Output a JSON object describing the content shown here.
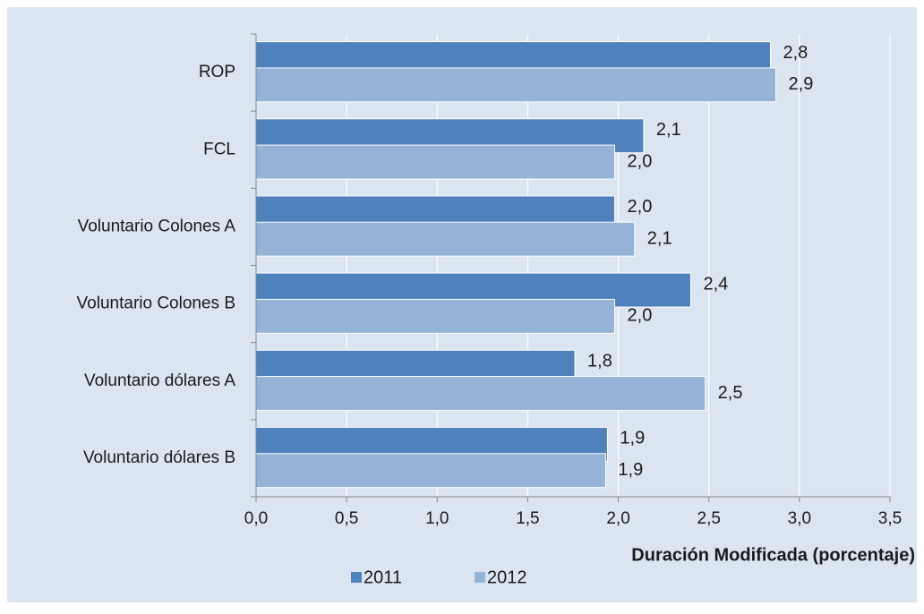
{
  "chart_data": {
    "type": "bar",
    "orientation": "horizontal",
    "x_label": "Duración Modificada (porcentaje)",
    "categories": [
      "ROP",
      "FCL",
      "Voluntario Colones A",
      "Voluntario Colones B",
      "Voluntario dólares A",
      "Voluntario dólares B"
    ],
    "series": [
      {
        "name": "2011",
        "color": "#4f81bd",
        "values": [
          2.84,
          2.14,
          1.98,
          2.4,
          1.76,
          1.94
        ],
        "value_labels": [
          "2,8",
          "2,1",
          "2,0",
          "2,4",
          "1,8",
          "1,9"
        ]
      },
      {
        "name": "2012",
        "color": "#95b3d7",
        "values": [
          2.87,
          1.98,
          2.09,
          1.98,
          2.48,
          1.93
        ],
        "value_labels": [
          "2,9",
          "2,0",
          "2,1",
          "2,0",
          "2,5",
          "1,9"
        ]
      }
    ],
    "xlim": [
      0,
      3.5
    ],
    "xticks": [
      {
        "value": 0,
        "label": "0,0"
      },
      {
        "value": 0.5,
        "label": "0,5"
      },
      {
        "value": 1,
        "label": "1,0"
      },
      {
        "value": 1.5,
        "label": "1,5"
      },
      {
        "value": 2,
        "label": "2,0"
      },
      {
        "value": 2.5,
        "label": "2,5"
      },
      {
        "value": 3,
        "label": "3,0"
      },
      {
        "value": 3.5,
        "label": "3,5"
      }
    ],
    "grid": true,
    "legend": "bottom"
  }
}
